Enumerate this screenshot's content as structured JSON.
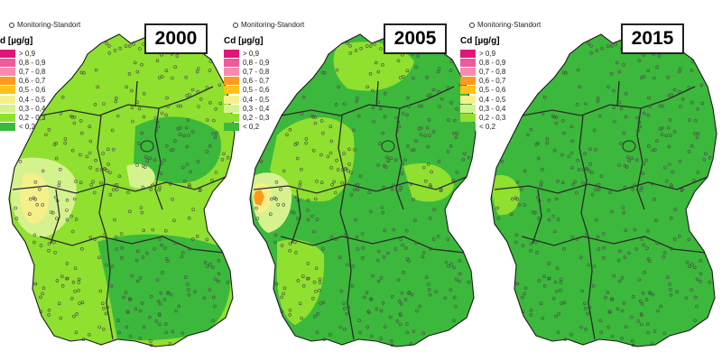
{
  "monitoring_label": "Monitoring-Standort",
  "unit_label": "Cd [µg/g]",
  "unit_label_clipped": "d [µg/g]",
  "legend": [
    {
      "label": "> 0,9",
      "color": "#e0157a"
    },
    {
      "label": "0,8 - 0,9",
      "color": "#ee5a9a"
    },
    {
      "label": "0,7 - 0,8",
      "color": "#f78ab0"
    },
    {
      "label": "0,6 - 0,7",
      "color": "#ff9a1f"
    },
    {
      "label": "0,5 - 0,6",
      "color": "#ffc21a"
    },
    {
      "label": "0,4 - 0,5",
      "color": "#f6f08a"
    },
    {
      "label": "0,3 - 0,4",
      "color": "#d6f28e"
    },
    {
      "label": "0,2 - 0,3",
      "color": "#8fe02f"
    },
    {
      "label": "< 0,2",
      "color": "#3cb83c"
    }
  ],
  "maps": [
    {
      "year": "2000",
      "dominant_class": "0,2 - 0,3"
    },
    {
      "year": "2005",
      "dominant_class": "< 0,2"
    },
    {
      "year": "2015",
      "dominant_class": "< 0,2"
    }
  ],
  "colors": {
    "border": "#1a1a1a",
    "inner_border": "#2a2a2a",
    "site_marker": "#4a4a4a"
  }
}
